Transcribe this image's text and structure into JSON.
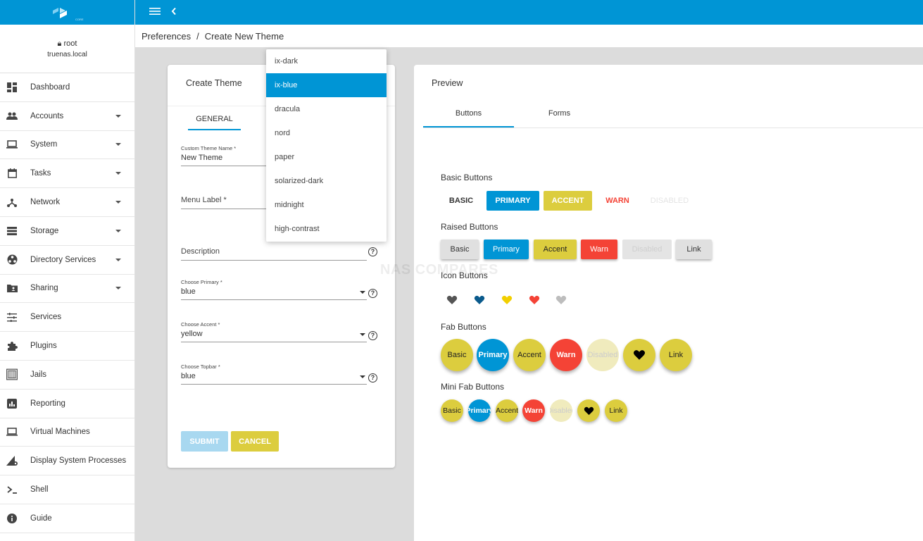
{
  "topbar": {
    "menu_icon": "hamburger-icon",
    "back_icon": "chevron-left-icon"
  },
  "logo": {
    "text": "CORE"
  },
  "user": {
    "name": "root",
    "host": "truenas.local"
  },
  "breadcrumb": {
    "parent": "Preferences",
    "separator": "/",
    "current": "Create New Theme"
  },
  "sidebar": {
    "items": [
      {
        "label": "Dashboard",
        "icon": "dashboard-icon",
        "expandable": false
      },
      {
        "label": "Accounts",
        "icon": "people-icon",
        "expandable": true
      },
      {
        "label": "System",
        "icon": "laptop-icon",
        "expandable": true
      },
      {
        "label": "Tasks",
        "icon": "calendar-icon",
        "expandable": true
      },
      {
        "label": "Network",
        "icon": "network-icon",
        "expandable": true
      },
      {
        "label": "Storage",
        "icon": "storage-icon",
        "expandable": true
      },
      {
        "label": "Directory Services",
        "icon": "directory-icon",
        "expandable": true
      },
      {
        "label": "Sharing",
        "icon": "folder-shared-icon",
        "expandable": true
      },
      {
        "label": "Services",
        "icon": "tune-icon",
        "expandable": false
      },
      {
        "label": "Plugins",
        "icon": "puzzle-icon",
        "expandable": false
      },
      {
        "label": "Jails",
        "icon": "jail-icon",
        "expandable": false
      },
      {
        "label": "Reporting",
        "icon": "chart-icon",
        "expandable": false
      },
      {
        "label": "Virtual Machines",
        "icon": "computer-icon",
        "expandable": false
      },
      {
        "label": "Display System Processes",
        "icon": "processes-icon",
        "expandable": false
      },
      {
        "label": "Shell",
        "icon": "terminal-icon",
        "expandable": false
      },
      {
        "label": "Guide",
        "icon": "info-icon",
        "expandable": false
      }
    ]
  },
  "create_card": {
    "title": "Create Theme",
    "tab": "GENERAL",
    "fields": {
      "name": {
        "label": "Custom Theme Name *",
        "value": "New Theme"
      },
      "menu_label": {
        "placeholder": "Menu Label *"
      },
      "description": {
        "placeholder": "Description"
      },
      "primary": {
        "label": "Choose Primary *",
        "value": "blue"
      },
      "accent": {
        "label": "Choose Accent *",
        "value": "yellow"
      },
      "topbar": {
        "label": "Choose Topbar *",
        "value": "blue"
      }
    },
    "submit": "SUBMIT",
    "cancel": "CANCEL"
  },
  "dropdown": {
    "options": [
      "ix-dark",
      "ix-blue",
      "dracula",
      "nord",
      "paper",
      "solarized-dark",
      "midnight",
      "high-contrast"
    ],
    "selected": "ix-blue"
  },
  "preview": {
    "title": "Preview",
    "tabs": [
      "Buttons",
      "Forms"
    ],
    "active_tab": "Buttons",
    "basic_title": "Basic Buttons",
    "basic": [
      "BASIC",
      "PRIMARY",
      "ACCENT",
      "WARN",
      "DISABLED"
    ],
    "raised_title": "Raised Buttons",
    "raised": [
      "Basic",
      "Primary",
      "Accent",
      "Warn",
      "Disabled",
      "Link"
    ],
    "icon_title": "Icon Buttons",
    "fab_title": "Fab Buttons",
    "fab": [
      "Basic",
      "Primary",
      "Accent",
      "Warn",
      "Disabled",
      "Link"
    ],
    "mini_title": "Mini Fab Buttons",
    "mini": [
      "Basic",
      "Primary",
      "Accent",
      "Warn",
      "Disabled",
      "Link"
    ]
  },
  "watermark": "NAS COMPARES",
  "colors": {
    "primary": "#0095d5",
    "accent": "#dccd3e",
    "warn": "#f44336",
    "topbar": "#0095d5"
  }
}
